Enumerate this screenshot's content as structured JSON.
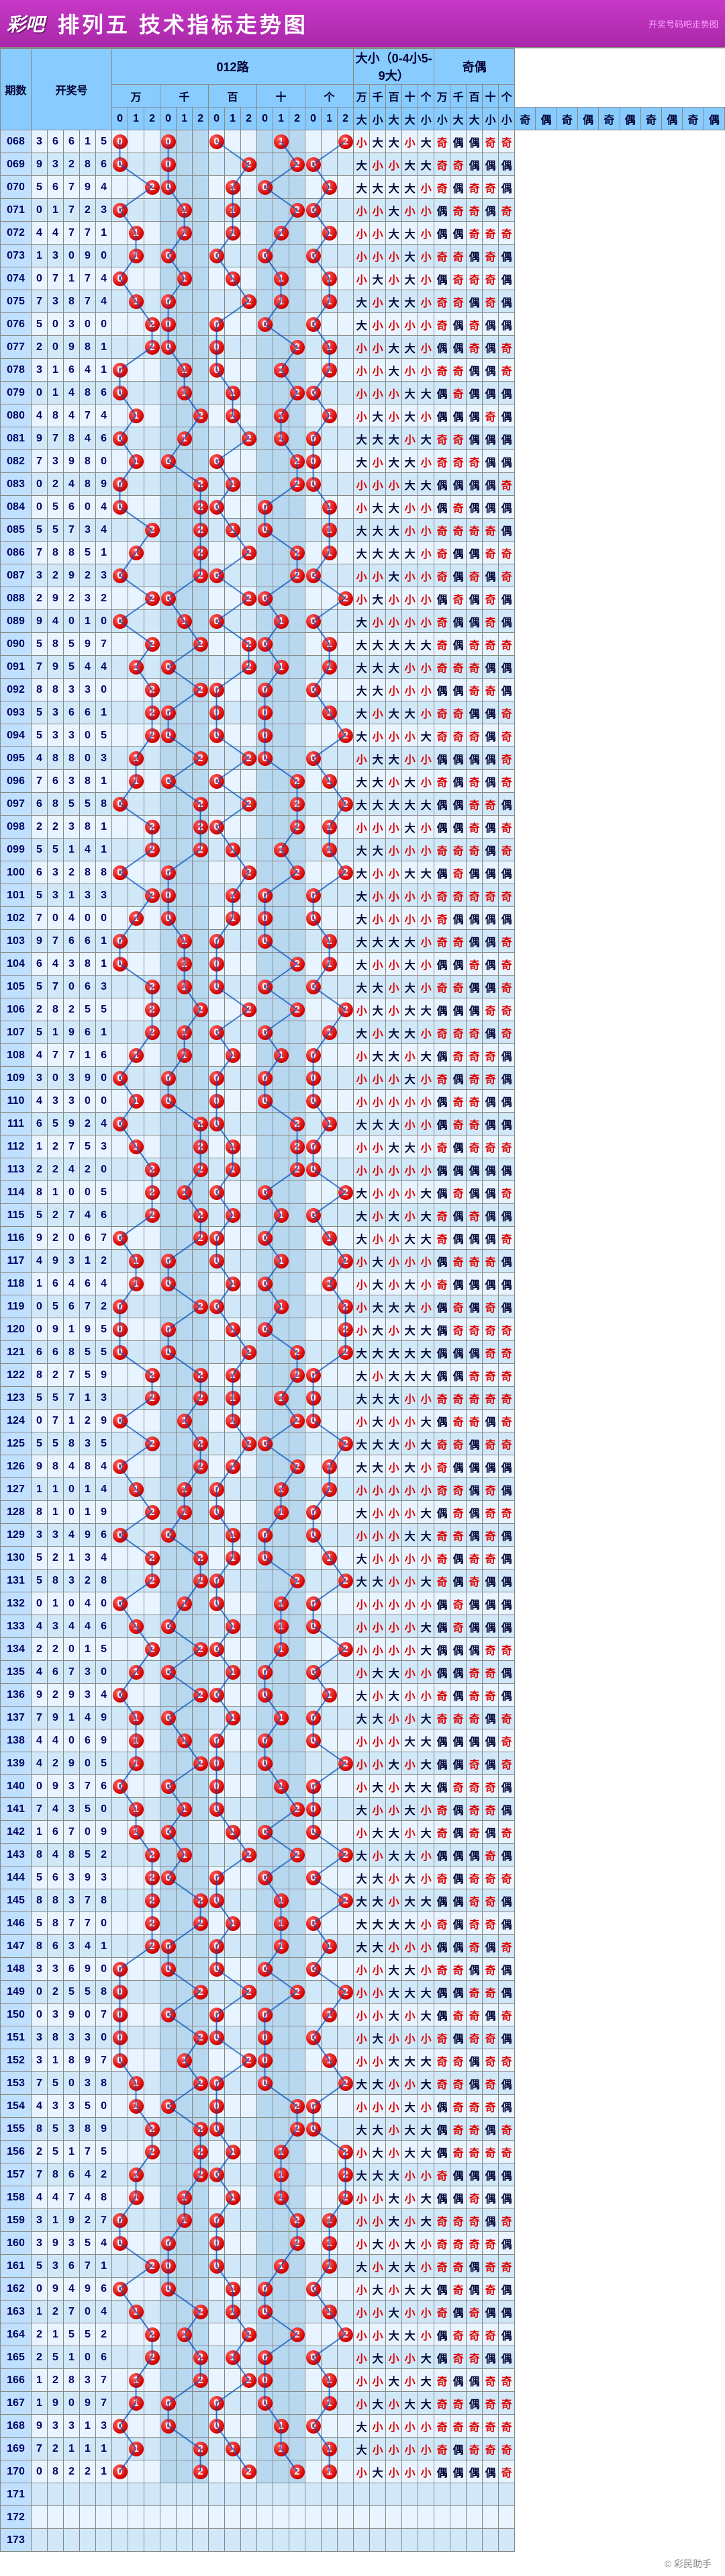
{
  "header": {
    "logo": "彩吧",
    "title": "排列五 技术指标走势图",
    "sub": "开奖号码吧走势图"
  },
  "cols": {
    "period": "期数",
    "draw": "开奖号",
    "lu": "012路",
    "size": "大小（0-4小5-9大）",
    "parity": "奇偶",
    "pos": [
      "万",
      "千",
      "百",
      "十",
      "个"
    ],
    "lu012": [
      "0",
      "1",
      "2"
    ],
    "sizeHdr": "大小大大小小大大小小",
    "parityHdr": "奇偶奇偶奇偶奇偶奇偶"
  },
  "glyphs": {
    "big": "大",
    "small": "小",
    "odd": "奇",
    "even": "偶"
  },
  "footer": "© 彩民助手",
  "colors": {
    "ball": "#d00000",
    "line": "#0050c0",
    "big": "#003366",
    "small": "#d00000",
    "odd": "#d00000",
    "even": "#003366"
  },
  "emptyRows": [
    "171",
    "172",
    "173"
  ],
  "rows": [
    {
      "p": "068",
      "d": [
        3,
        6,
        6,
        1,
        5
      ]
    },
    {
      "p": "069",
      "d": [
        9,
        3,
        2,
        8,
        6
      ]
    },
    {
      "p": "070",
      "d": [
        5,
        6,
        7,
        9,
        4
      ]
    },
    {
      "p": "071",
      "d": [
        0,
        1,
        7,
        2,
        3
      ]
    },
    {
      "p": "072",
      "d": [
        4,
        4,
        7,
        7,
        1
      ]
    },
    {
      "p": "073",
      "d": [
        1,
        3,
        0,
        9,
        0
      ]
    },
    {
      "p": "074",
      "d": [
        0,
        7,
        1,
        7,
        4
      ]
    },
    {
      "p": "075",
      "d": [
        7,
        3,
        8,
        7,
        4
      ]
    },
    {
      "p": "076",
      "d": [
        5,
        0,
        3,
        0,
        0
      ]
    },
    {
      "p": "077",
      "d": [
        2,
        0,
        9,
        8,
        1
      ]
    },
    {
      "p": "078",
      "d": [
        3,
        1,
        6,
        4,
        1
      ]
    },
    {
      "p": "079",
      "d": [
        0,
        1,
        4,
        8,
        6
      ]
    },
    {
      "p": "080",
      "d": [
        4,
        8,
        4,
        7,
        4
      ]
    },
    {
      "p": "081",
      "d": [
        9,
        7,
        8,
        4,
        6
      ]
    },
    {
      "p": "082",
      "d": [
        7,
        3,
        9,
        8,
        0
      ]
    },
    {
      "p": "083",
      "d": [
        0,
        2,
        4,
        8,
        9
      ]
    },
    {
      "p": "084",
      "d": [
        0,
        5,
        6,
        0,
        4
      ]
    },
    {
      "p": "085",
      "d": [
        5,
        5,
        7,
        3,
        4
      ]
    },
    {
      "p": "086",
      "d": [
        7,
        8,
        8,
        5,
        1
      ]
    },
    {
      "p": "087",
      "d": [
        3,
        2,
        9,
        2,
        3
      ]
    },
    {
      "p": "088",
      "d": [
        2,
        9,
        2,
        3,
        2
      ]
    },
    {
      "p": "089",
      "d": [
        9,
        4,
        0,
        1,
        0
      ]
    },
    {
      "p": "090",
      "d": [
        5,
        8,
        5,
        9,
        7
      ]
    },
    {
      "p": "091",
      "d": [
        7,
        9,
        5,
        4,
        4
      ]
    },
    {
      "p": "092",
      "d": [
        8,
        8,
        3,
        3,
        0
      ]
    },
    {
      "p": "093",
      "d": [
        5,
        3,
        6,
        6,
        1
      ]
    },
    {
      "p": "094",
      "d": [
        5,
        3,
        3,
        0,
        5
      ]
    },
    {
      "p": "095",
      "d": [
        4,
        8,
        8,
        0,
        3
      ]
    },
    {
      "p": "096",
      "d": [
        7,
        6,
        3,
        8,
        1
      ]
    },
    {
      "p": "097",
      "d": [
        6,
        8,
        5,
        5,
        8
      ]
    },
    {
      "p": "098",
      "d": [
        2,
        2,
        3,
        8,
        1
      ]
    },
    {
      "p": "099",
      "d": [
        5,
        5,
        1,
        4,
        1
      ]
    },
    {
      "p": "100",
      "d": [
        6,
        3,
        2,
        8,
        8
      ]
    },
    {
      "p": "101",
      "d": [
        5,
        3,
        1,
        3,
        3
      ]
    },
    {
      "p": "102",
      "d": [
        7,
        0,
        4,
        0,
        0
      ]
    },
    {
      "p": "103",
      "d": [
        9,
        7,
        6,
        6,
        1
      ]
    },
    {
      "p": "104",
      "d": [
        6,
        4,
        3,
        8,
        1
      ]
    },
    {
      "p": "105",
      "d": [
        5,
        7,
        0,
        6,
        3
      ]
    },
    {
      "p": "106",
      "d": [
        2,
        8,
        2,
        5,
        5
      ]
    },
    {
      "p": "107",
      "d": [
        5,
        1,
        9,
        6,
        1
      ]
    },
    {
      "p": "108",
      "d": [
        4,
        7,
        7,
        1,
        6
      ]
    },
    {
      "p": "109",
      "d": [
        3,
        0,
        3,
        9,
        0
      ]
    },
    {
      "p": "110",
      "d": [
        4,
        3,
        3,
        0,
        0
      ]
    },
    {
      "p": "111",
      "d": [
        6,
        5,
        9,
        2,
        4
      ]
    },
    {
      "p": "112",
      "d": [
        1,
        2,
        7,
        5,
        3
      ]
    },
    {
      "p": "113",
      "d": [
        2,
        2,
        4,
        2,
        0
      ]
    },
    {
      "p": "114",
      "d": [
        8,
        1,
        0,
        0,
        5
      ]
    },
    {
      "p": "115",
      "d": [
        5,
        2,
        7,
        4,
        6
      ]
    },
    {
      "p": "116",
      "d": [
        9,
        2,
        0,
        6,
        7
      ]
    },
    {
      "p": "117",
      "d": [
        4,
        9,
        3,
        1,
        2
      ]
    },
    {
      "p": "118",
      "d": [
        1,
        6,
        4,
        6,
        4
      ]
    },
    {
      "p": "119",
      "d": [
        0,
        5,
        6,
        7,
        2
      ]
    },
    {
      "p": "120",
      "d": [
        0,
        9,
        1,
        9,
        5
      ]
    },
    {
      "p": "121",
      "d": [
        6,
        6,
        8,
        5,
        5
      ]
    },
    {
      "p": "122",
      "d": [
        8,
        2,
        7,
        5,
        9
      ]
    },
    {
      "p": "123",
      "d": [
        5,
        5,
        7,
        1,
        3
      ]
    },
    {
      "p": "124",
      "d": [
        0,
        7,
        1,
        2,
        9
      ]
    },
    {
      "p": "125",
      "d": [
        5,
        5,
        8,
        3,
        5
      ]
    },
    {
      "p": "126",
      "d": [
        9,
        8,
        4,
        8,
        4
      ]
    },
    {
      "p": "127",
      "d": [
        1,
        1,
        0,
        1,
        4
      ]
    },
    {
      "p": "128",
      "d": [
        8,
        1,
        0,
        1,
        9
      ]
    },
    {
      "p": "129",
      "d": [
        3,
        3,
        4,
        9,
        6
      ]
    },
    {
      "p": "130",
      "d": [
        5,
        2,
        1,
        3,
        4
      ]
    },
    {
      "p": "131",
      "d": [
        5,
        8,
        3,
        2,
        8
      ]
    },
    {
      "p": "132",
      "d": [
        0,
        1,
        0,
        4,
        0
      ]
    },
    {
      "p": "133",
      "d": [
        4,
        3,
        4,
        4,
        6
      ]
    },
    {
      "p": "134",
      "d": [
        2,
        2,
        0,
        1,
        5
      ]
    },
    {
      "p": "135",
      "d": [
        4,
        6,
        7,
        3,
        0
      ]
    },
    {
      "p": "136",
      "d": [
        9,
        2,
        9,
        3,
        4
      ]
    },
    {
      "p": "137",
      "d": [
        7,
        9,
        1,
        4,
        9
      ]
    },
    {
      "p": "138",
      "d": [
        4,
        4,
        0,
        6,
        9
      ]
    },
    {
      "p": "139",
      "d": [
        4,
        2,
        9,
        0,
        5
      ]
    },
    {
      "p": "140",
      "d": [
        0,
        9,
        3,
        7,
        6
      ]
    },
    {
      "p": "141",
      "d": [
        7,
        4,
        3,
        5,
        0
      ]
    },
    {
      "p": "142",
      "d": [
        1,
        6,
        7,
        0,
        9
      ]
    },
    {
      "p": "143",
      "d": [
        8,
        4,
        8,
        5,
        2
      ]
    },
    {
      "p": "144",
      "d": [
        5,
        6,
        3,
        9,
        3
      ]
    },
    {
      "p": "145",
      "d": [
        8,
        8,
        3,
        7,
        8
      ]
    },
    {
      "p": "146",
      "d": [
        5,
        8,
        7,
        7,
        0
      ]
    },
    {
      "p": "147",
      "d": [
        8,
        6,
        3,
        4,
        1
      ]
    },
    {
      "p": "148",
      "d": [
        3,
        3,
        6,
        9,
        0
      ]
    },
    {
      "p": "149",
      "d": [
        0,
        2,
        5,
        5,
        8
      ]
    },
    {
      "p": "150",
      "d": [
        0,
        3,
        9,
        0,
        7
      ]
    },
    {
      "p": "151",
      "d": [
        3,
        8,
        3,
        3,
        0
      ]
    },
    {
      "p": "152",
      "d": [
        3,
        1,
        8,
        9,
        7
      ]
    },
    {
      "p": "153",
      "d": [
        7,
        5,
        0,
        3,
        8
      ]
    },
    {
      "p": "154",
      "d": [
        4,
        3,
        3,
        5,
        0
      ]
    },
    {
      "p": "155",
      "d": [
        8,
        5,
        3,
        8,
        9
      ]
    },
    {
      "p": "156",
      "d": [
        2,
        5,
        1,
        7,
        5
      ]
    },
    {
      "p": "157",
      "d": [
        7,
        8,
        6,
        4,
        2
      ]
    },
    {
      "p": "158",
      "d": [
        4,
        4,
        7,
        4,
        8
      ]
    },
    {
      "p": "159",
      "d": [
        3,
        1,
        9,
        2,
        7
      ]
    },
    {
      "p": "160",
      "d": [
        3,
        9,
        3,
        5,
        4
      ]
    },
    {
      "p": "161",
      "d": [
        5,
        3,
        6,
        7,
        1
      ]
    },
    {
      "p": "162",
      "d": [
        0,
        9,
        4,
        9,
        6
      ]
    },
    {
      "p": "163",
      "d": [
        1,
        2,
        7,
        0,
        4
      ]
    },
    {
      "p": "164",
      "d": [
        2,
        1,
        5,
        5,
        2
      ]
    },
    {
      "p": "165",
      "d": [
        2,
        5,
        1,
        0,
        6
      ]
    },
    {
      "p": "166",
      "d": [
        1,
        2,
        8,
        3,
        7
      ]
    },
    {
      "p": "167",
      "d": [
        1,
        9,
        0,
        9,
        7
      ]
    },
    {
      "p": "168",
      "d": [
        9,
        3,
        3,
        1,
        3
      ]
    },
    {
      "p": "169",
      "d": [
        7,
        2,
        1,
        1,
        1
      ]
    },
    {
      "p": "170",
      "d": [
        0,
        8,
        2,
        2,
        1
      ]
    }
  ]
}
